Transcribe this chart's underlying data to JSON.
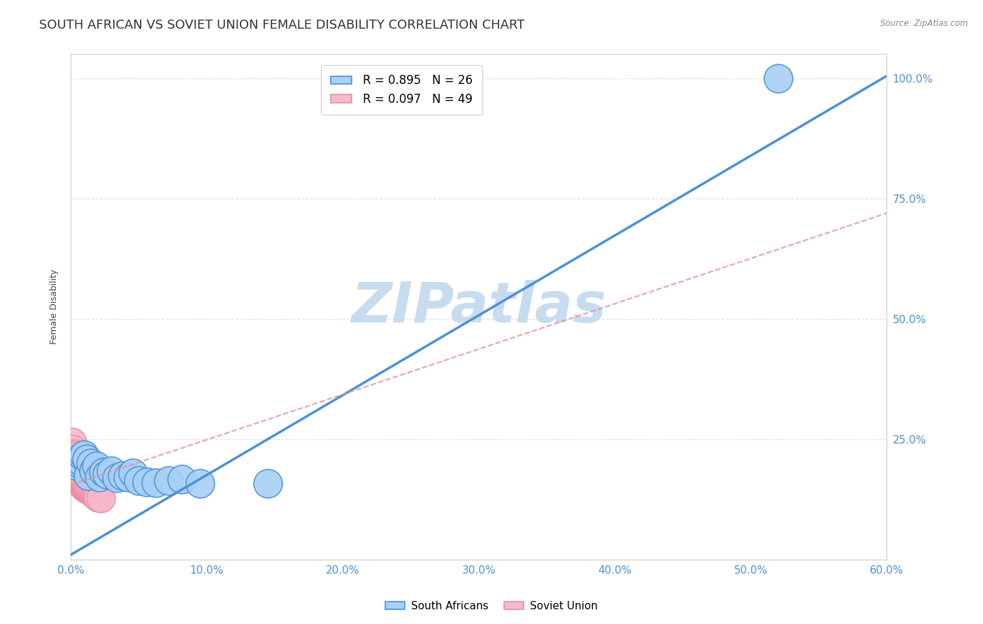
{
  "title": "SOUTH AFRICAN VS SOVIET UNION FEMALE DISABILITY CORRELATION CHART",
  "source": "Source: ZipAtlas.com",
  "ylabel": "Female Disability",
  "xlim": [
    0.0,
    0.6
  ],
  "ylim": [
    0.0,
    1.05
  ],
  "xtick_labels": [
    "0.0%",
    "",
    "",
    "",
    "",
    "",
    "10.0%",
    "",
    "",
    "",
    "",
    "",
    "20.0%",
    "",
    "",
    "",
    "",
    "",
    "30.0%",
    "",
    "",
    "",
    "",
    "",
    "40.0%",
    "",
    "",
    "",
    "",
    "",
    "50.0%",
    "",
    "",
    "",
    "",
    "",
    "60.0%"
  ],
  "xtick_vals": [
    0.0,
    0.1,
    0.2,
    0.3,
    0.4,
    0.5,
    0.6
  ],
  "xtick_display": [
    "0.0%",
    "10.0%",
    "20.0%",
    "30.0%",
    "40.0%",
    "50.0%",
    "60.0%"
  ],
  "ytick_labels": [
    "25.0%",
    "50.0%",
    "75.0%",
    "100.0%"
  ],
  "ytick_vals": [
    0.25,
    0.5,
    0.75,
    1.0
  ],
  "legend_entry1": "R = 0.895   N = 26",
  "legend_entry2": "R = 0.097   N = 49",
  "sa_color": "#A8D0F5",
  "su_color": "#F9B8C8",
  "sa_line_color": "#4A90D9",
  "su_line_color": "#E88FA0",
  "watermark": "ZIPatlas",
  "watermark_color": "#C8DCF0",
  "sa_scatter_x": [
    0.005,
    0.006,
    0.007,
    0.009,
    0.01,
    0.012,
    0.013,
    0.015,
    0.017,
    0.019,
    0.021,
    0.024,
    0.027,
    0.03,
    0.034,
    0.038,
    0.042,
    0.046,
    0.05,
    0.056,
    0.063,
    0.072,
    0.082,
    0.095,
    0.145,
    0.52
  ],
  "sa_scatter_y": [
    0.195,
    0.2,
    0.205,
    0.215,
    0.218,
    0.21,
    0.175,
    0.2,
    0.185,
    0.195,
    0.172,
    0.182,
    0.178,
    0.185,
    0.17,
    0.175,
    0.172,
    0.18,
    0.165,
    0.162,
    0.16,
    0.165,
    0.168,
    0.158,
    0.158,
    1.0
  ],
  "su_scatter_x": [
    0.001,
    0.001,
    0.001,
    0.002,
    0.002,
    0.002,
    0.002,
    0.003,
    0.003,
    0.003,
    0.003,
    0.003,
    0.004,
    0.004,
    0.004,
    0.004,
    0.005,
    0.005,
    0.005,
    0.005,
    0.006,
    0.006,
    0.006,
    0.006,
    0.007,
    0.007,
    0.007,
    0.008,
    0.008,
    0.008,
    0.009,
    0.009,
    0.009,
    0.01,
    0.01,
    0.011,
    0.011,
    0.012,
    0.012,
    0.013,
    0.013,
    0.014,
    0.015,
    0.016,
    0.017,
    0.018,
    0.019,
    0.02,
    0.022
  ],
  "su_scatter_y": [
    0.245,
    0.23,
    0.215,
    0.215,
    0.22,
    0.205,
    0.215,
    0.2,
    0.21,
    0.205,
    0.195,
    0.19,
    0.192,
    0.188,
    0.185,
    0.182,
    0.178,
    0.175,
    0.18,
    0.172,
    0.17,
    0.168,
    0.172,
    0.165,
    0.165,
    0.162,
    0.168,
    0.16,
    0.162,
    0.158,
    0.158,
    0.155,
    0.162,
    0.152,
    0.158,
    0.15,
    0.155,
    0.148,
    0.152,
    0.145,
    0.15,
    0.145,
    0.142,
    0.14,
    0.138,
    0.136,
    0.133,
    0.13,
    0.128
  ],
  "sa_line_x": [
    0.0,
    0.6
  ],
  "sa_line_y": [
    0.01,
    1.005
  ],
  "su_line_x": [
    0.0,
    0.6
  ],
  "su_line_y": [
    0.155,
    0.72
  ],
  "title_fontsize": 13,
  "axis_label_fontsize": 9,
  "tick_fontsize": 11,
  "marker_size": 12,
  "background_color": "#FFFFFF",
  "axis_color": "#4A90D9",
  "grid_color": "#E0E0E0"
}
